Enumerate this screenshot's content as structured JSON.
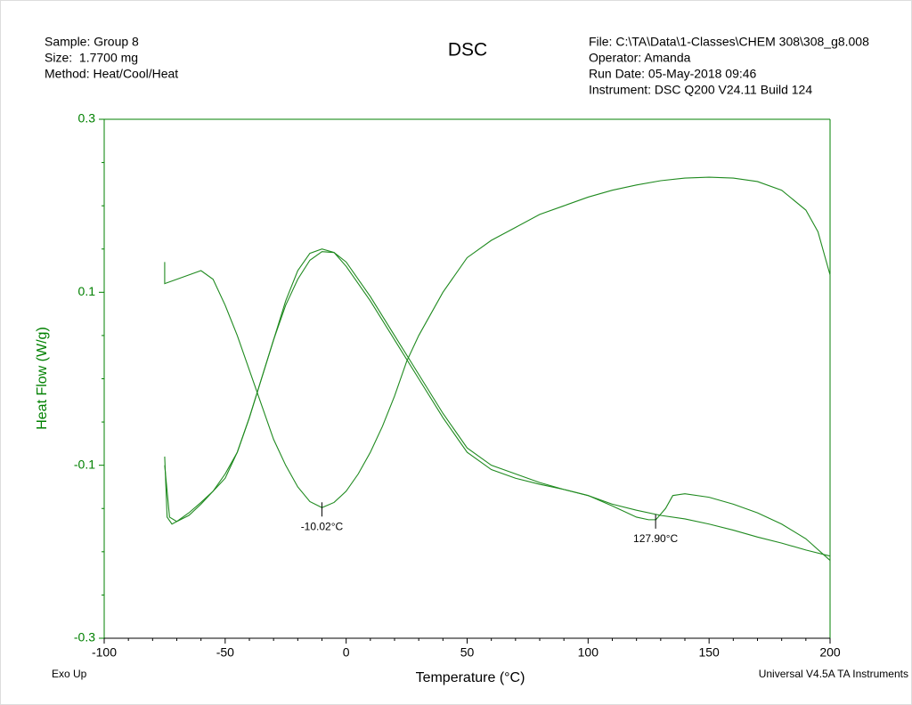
{
  "chart_data": {
    "type": "line",
    "title": "DSC",
    "header_left": [
      "Sample: Group 8",
      "Size:  1.7700 mg",
      "Method: Heat/Cool/Heat"
    ],
    "header_right": [
      "File: C:\\TA\\Data\\1-Classes\\CHEM 308\\308_g8.008",
      "Operator: Amanda",
      "Run Date: 05-May-2018 09:46",
      "Instrument: DSC Q200 V24.11 Build 124"
    ],
    "x_label": "Temperature (°C)",
    "y_label": "Heat Flow (W/g)",
    "footer_left": "Exo Up",
    "footer_right": "Universal V4.5A TA Instruments",
    "xlim": [
      -100,
      200
    ],
    "ylim": [
      -0.3,
      0.3
    ],
    "xticks": [
      -100,
      -50,
      0,
      50,
      100,
      150,
      200
    ],
    "yticks": [
      0.3,
      0.1,
      -0.1,
      -0.3
    ],
    "x_minor_ticks": [
      -90,
      -80,
      -70,
      -60,
      -40,
      -30,
      -20,
      -10,
      10,
      20,
      30,
      40,
      60,
      70,
      80,
      90,
      110,
      120,
      130,
      140,
      160,
      170,
      180,
      190
    ],
    "y_minor_ticks": [
      0.25,
      0.2,
      0.15,
      0.05,
      0,
      -0.05,
      -0.15,
      -0.2,
      -0.25
    ],
    "axis_color": "#008000",
    "series": [
      {
        "color": "#1f8a1f",
        "x": [
          -75,
          -75,
          -70,
          -65,
          -60,
          -55,
          -50,
          -45,
          -40,
          -35,
          -30,
          -25,
          -20,
          -15,
          -10,
          -5,
          0,
          5,
          10,
          15,
          20,
          25,
          30,
          40,
          50,
          60,
          70,
          80,
          90,
          100,
          110,
          120,
          130,
          140,
          150,
          160,
          170,
          180,
          190,
          195,
          198,
          200,
          200
        ],
        "values": [
          0.135,
          0.11,
          0.115,
          0.12,
          0.125,
          0.115,
          0.085,
          0.05,
          0.01,
          -0.03,
          -0.07,
          -0.1,
          -0.125,
          -0.142,
          -0.149,
          -0.143,
          -0.13,
          -0.11,
          -0.085,
          -0.055,
          -0.02,
          0.02,
          0.05,
          0.1,
          0.14,
          0.16,
          0.175,
          0.19,
          0.2,
          0.21,
          0.218,
          0.224,
          0.229,
          0.232,
          0.233,
          0.232,
          0.228,
          0.218,
          0.195,
          0.17,
          0.14,
          0.12,
          -0.26
        ]
      },
      {
        "color": "#1f8a1f",
        "x": [
          200,
          190,
          180,
          170,
          160,
          150,
          140,
          130,
          120,
          110,
          100,
          90,
          80,
          70,
          60,
          50,
          40,
          30,
          20,
          10,
          0,
          -5,
          -10,
          -15,
          -20,
          -25,
          -30,
          -35,
          -40,
          -45,
          -50,
          -55,
          -60,
          -65,
          -70,
          -73,
          -75
        ],
        "values": [
          -0.205,
          -0.198,
          -0.19,
          -0.183,
          -0.175,
          -0.168,
          -0.162,
          -0.158,
          -0.152,
          -0.145,
          -0.135,
          -0.128,
          -0.122,
          -0.115,
          -0.105,
          -0.085,
          -0.045,
          0,
          0.045,
          0.09,
          0.13,
          0.146,
          0.15,
          0.145,
          0.125,
          0.09,
          0.045,
          0,
          -0.045,
          -0.085,
          -0.11,
          -0.13,
          -0.145,
          -0.158,
          -0.165,
          -0.16,
          -0.1
        ]
      },
      {
        "color": "#1f8a1f",
        "x": [
          -75,
          -74,
          -72,
          -70,
          -65,
          -60,
          -55,
          -50,
          -45,
          -40,
          -35,
          -30,
          -25,
          -20,
          -15,
          -10,
          -5,
          0,
          10,
          20,
          30,
          40,
          50,
          60,
          70,
          80,
          90,
          100,
          110,
          120,
          125,
          128,
          132,
          135,
          140,
          150,
          160,
          170,
          180,
          190,
          200
        ],
        "values": [
          -0.09,
          -0.16,
          -0.168,
          -0.165,
          -0.155,
          -0.143,
          -0.13,
          -0.115,
          -0.085,
          -0.045,
          0,
          0.045,
          0.085,
          0.115,
          0.137,
          0.147,
          0.146,
          0.135,
          0.095,
          0.05,
          0.005,
          -0.04,
          -0.08,
          -0.1,
          -0.11,
          -0.12,
          -0.128,
          -0.135,
          -0.147,
          -0.16,
          -0.163,
          -0.163,
          -0.15,
          -0.135,
          -0.133,
          -0.137,
          -0.145,
          -0.155,
          -0.168,
          -0.185,
          -0.21
        ]
      }
    ],
    "annotations": [
      {
        "text": "-10.02°C",
        "x": -10.02,
        "y": -0.149
      },
      {
        "text": "127.90°C",
        "x": 127.9,
        "y": -0.163
      }
    ]
  }
}
